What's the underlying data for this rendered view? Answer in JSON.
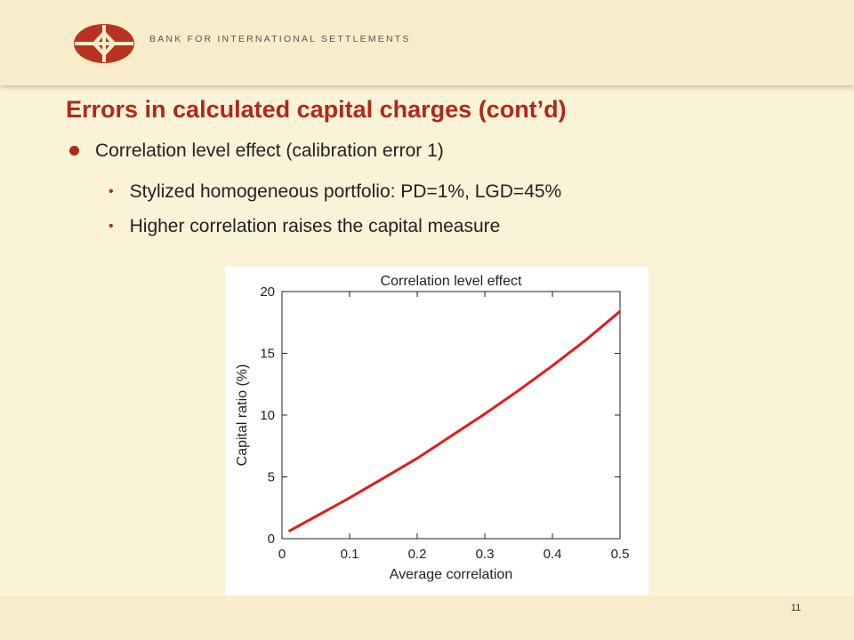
{
  "header": {
    "org_name": "BANK FOR INTERNATIONAL SETTLEMENTS",
    "logo_icon": "bis-logo-icon",
    "brand_color": "#b0281c"
  },
  "slide": {
    "title": "Errors in calculated capital charges (cont’d)",
    "bullet": "Correlation level effect (calibration error 1)",
    "subbullets": [
      "Stylized homogeneous portfolio: PD=1%, LGD=45%",
      "Higher correlation raises the capital measure"
    ],
    "page_number": "11"
  },
  "chart_data": {
    "type": "line",
    "title": "Correlation level effect",
    "xlabel": "Average correlation",
    "ylabel": "Capital ratio (%)",
    "xlim": [
      0,
      0.5
    ],
    "ylim": [
      0,
      20
    ],
    "xticks": [
      "0",
      "0.1",
      "0.2",
      "0.3",
      "0.4",
      "0.5"
    ],
    "yticks": [
      "0",
      "5",
      "10",
      "15",
      "20"
    ],
    "grid": false,
    "line_color": "#e31b1b",
    "series": [
      {
        "x": [
          0.01,
          0.05,
          0.1,
          0.15,
          0.2,
          0.25,
          0.3,
          0.35,
          0.4,
          0.45,
          0.5
        ],
        "y": [
          0.6,
          1.8,
          3.3,
          4.9,
          6.5,
          8.3,
          10.1,
          12.0,
          14.0,
          16.1,
          18.4
        ]
      }
    ]
  }
}
